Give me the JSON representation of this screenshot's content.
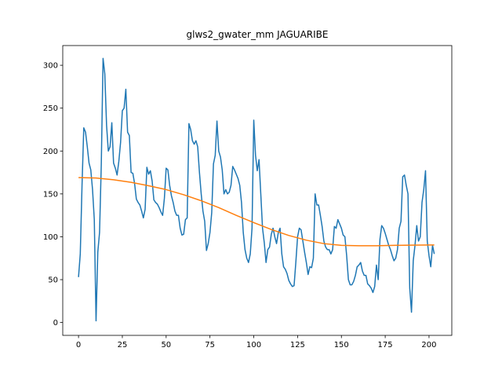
{
  "chart_data": {
    "type": "line",
    "title": "glws2_gwater_mm JAGUARIBE",
    "xlabel": "",
    "ylabel": "",
    "xlim": [
      -9,
      213
    ],
    "ylim": [
      -15,
      323
    ],
    "xticks": [
      0,
      25,
      50,
      75,
      100,
      125,
      150,
      175,
      200
    ],
    "yticks": [
      0,
      50,
      100,
      150,
      200,
      250,
      300
    ],
    "grid": false,
    "colors": {
      "series1": "#1f77b4",
      "series2": "#ff7f0e"
    },
    "series": [
      {
        "x": [
          0,
          1,
          2,
          3,
          4,
          5,
          6,
          7,
          8,
          9,
          10,
          11,
          12,
          13,
          14,
          15,
          16,
          17,
          18,
          19,
          20,
          21,
          22,
          23,
          24,
          25,
          26,
          27,
          28,
          29,
          30,
          31,
          32,
          33,
          34,
          35,
          36,
          37,
          38,
          39,
          40,
          41,
          42,
          43,
          44,
          45,
          46,
          47,
          48,
          49,
          50,
          51,
          52,
          53,
          54,
          55,
          56,
          57,
          58,
          59,
          60,
          61,
          62,
          63,
          64,
          65,
          66,
          67,
          68,
          69,
          70,
          71,
          72,
          73,
          74,
          75,
          76,
          77,
          78,
          79,
          80,
          81,
          82,
          83,
          84,
          85,
          86,
          87,
          88,
          89,
          90,
          91,
          92,
          93,
          94,
          95,
          96,
          97,
          98,
          99,
          100,
          101,
          102,
          103,
          104,
          105,
          106,
          107,
          108,
          109,
          110,
          111,
          112,
          113,
          114,
          115,
          116,
          117,
          118,
          119,
          120,
          121,
          122,
          123,
          124,
          125,
          126,
          127,
          128,
          129,
          130,
          131,
          132,
          133,
          134,
          135,
          136,
          137,
          138,
          139,
          140,
          141,
          142,
          143,
          144,
          145,
          146,
          147,
          148,
          149,
          150,
          151,
          152,
          153,
          154,
          155,
          156,
          157,
          158,
          159,
          160,
          161,
          162,
          163,
          164,
          165,
          166,
          167,
          168,
          169,
          170,
          171,
          172,
          173,
          174,
          175,
          176,
          177,
          178,
          179,
          180,
          181,
          182,
          183,
          184,
          185,
          186,
          187,
          188,
          189,
          190,
          191,
          192,
          193,
          194,
          195,
          196,
          197,
          198,
          199,
          200,
          201,
          202,
          203
        ],
        "values": [
          53,
          80,
          160,
          227,
          222,
          205,
          186,
          178,
          155,
          120,
          2,
          82,
          105,
          185,
          308,
          290,
          230,
          200,
          205,
          233,
          186,
          180,
          172,
          188,
          210,
          247,
          250,
          272,
          222,
          218,
          175,
          174,
          162,
          144,
          140,
          137,
          130,
          122,
          132,
          181,
          173,
          177,
          165,
          143,
          140,
          138,
          134,
          129,
          125,
          145,
          180,
          178,
          160,
          148,
          140,
          130,
          125,
          125,
          110,
          102,
          103,
          120,
          122,
          232,
          225,
          212,
          208,
          212,
          205,
          175,
          150,
          130,
          118,
          84,
          92,
          105,
          128,
          185,
          195,
          235,
          200,
          193,
          178,
          150,
          155,
          150,
          152,
          160,
          182,
          178,
          173,
          168,
          160,
          140,
          105,
          85,
          75,
          70,
          80,
          110,
          236,
          195,
          177,
          190,
          150,
          110,
          93,
          70,
          85,
          88,
          103,
          110,
          100,
          92,
          105,
          110,
          80,
          65,
          62,
          57,
          49,
          45,
          42,
          43,
          70,
          100,
          110,
          108,
          95,
          82,
          70,
          56,
          65,
          64,
          75,
          150,
          137,
          137,
          125,
          112,
          95,
          88,
          85,
          85,
          80,
          85,
          112,
          110,
          120,
          115,
          110,
          102,
          100,
          78,
          50,
          44,
          44,
          48,
          55,
          65,
          67,
          70,
          60,
          55,
          55,
          45,
          43,
          40,
          35,
          42,
          67,
          50,
          97,
          113,
          110,
          104,
          97,
          90,
          85,
          78,
          72,
          75,
          85,
          110,
          118,
          170,
          172,
          160,
          150,
          40,
          12,
          72,
          90,
          113,
          95,
          100,
          140,
          155,
          177,
          95,
          78,
          65,
          90,
          80
        ]
      },
      {
        "x": [
          0,
          10,
          20,
          30,
          40,
          50,
          60,
          70,
          80,
          90,
          100,
          110,
          120,
          130,
          140,
          150,
          160,
          170,
          180,
          190,
          203
        ],
        "values": [
          169,
          168.5,
          166.5,
          163.5,
          159.5,
          155,
          149,
          142,
          134,
          125,
          116.5,
          108.5,
          101.5,
          96,
          92,
          90,
          89.5,
          89.5,
          90,
          90.2,
          90.5
        ]
      }
    ]
  }
}
